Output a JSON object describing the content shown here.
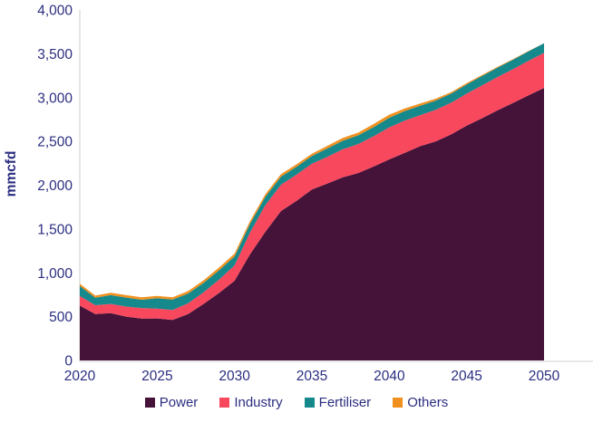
{
  "page": {
    "background": "#FFFFFF"
  },
  "colors": {
    "axis_line": "#D9D9D9",
    "tick_text": "#2B2E80"
  },
  "chart_data": {
    "type": "area",
    "stacked": true,
    "title": "",
    "xlabel": "",
    "ylabel": "mmcfd",
    "grid": false,
    "legend_position": "bottom",
    "ylim": [
      0,
      4000
    ],
    "yticks": [
      0,
      500,
      1000,
      1500,
      2000,
      2500,
      3000,
      3500,
      4000
    ],
    "ytick_labels": [
      "0",
      "500",
      "1,000",
      "1,500",
      "2,000",
      "2,500",
      "3,000",
      "3,500",
      "4,000"
    ],
    "xticks": [
      2020,
      2025,
      2030,
      2035,
      2040,
      2045,
      2050
    ],
    "xtick_labels": [
      "2020",
      "2025",
      "2030",
      "2035",
      "2040",
      "2045",
      "2050"
    ],
    "x": [
      2020,
      2021,
      2022,
      2023,
      2024,
      2025,
      2026,
      2027,
      2028,
      2029,
      2030,
      2031,
      2032,
      2033,
      2034,
      2035,
      2036,
      2037,
      2038,
      2039,
      2040,
      2041,
      2042,
      2043,
      2044,
      2045,
      2046,
      2047,
      2048,
      2049,
      2050
    ],
    "series": [
      {
        "name": "Power",
        "color": "#451339",
        "values": [
          625,
          530,
          540,
          500,
          478,
          480,
          462,
          530,
          645,
          770,
          910,
          1210,
          1470,
          1705,
          1820,
          1950,
          2020,
          2090,
          2140,
          2215,
          2295,
          2370,
          2445,
          2500,
          2580,
          2680,
          2765,
          2855,
          2940,
          3025,
          3110
        ]
      },
      {
        "name": "Industry",
        "color": "#F8485E",
        "values": [
          110,
          100,
          105,
          115,
          120,
          112,
          115,
          122,
          132,
          152,
          175,
          250,
          305,
          300,
          300,
          295,
          305,
          320,
          330,
          345,
          365,
          368,
          355,
          360,
          362,
          365,
          375,
          380,
          385,
          395,
          400
        ]
      },
      {
        "name": "Fertiliser",
        "color": "#15898C",
        "values": [
          115,
          85,
          100,
          102,
          95,
          118,
          118,
          112,
          108,
          106,
          102,
          98,
          95,
          92,
          90,
          88,
          95,
          98,
          100,
          105,
          110,
          108,
          108,
          105,
          103,
          105,
          107,
          108,
          108,
          109,
          110
        ]
      },
      {
        "name": "Others",
        "color": "#F0911F",
        "values": [
          25,
          25,
          28,
          28,
          28,
          26,
          25,
          28,
          30,
          32,
          33,
          32,
          30,
          30,
          28,
          27,
          30,
          32,
          30,
          35,
          35,
          30,
          25,
          22,
          18,
          15,
          12,
          9,
          6,
          3,
          0
        ]
      }
    ]
  }
}
